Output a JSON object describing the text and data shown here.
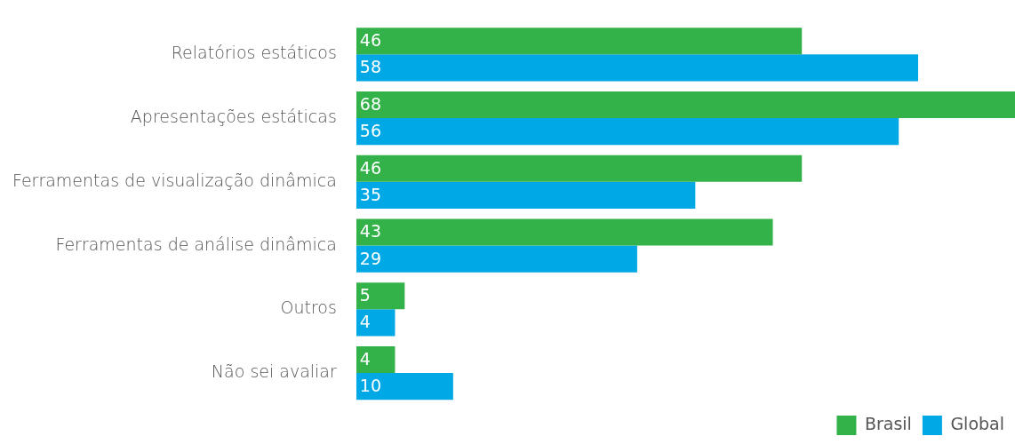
{
  "chart_data": {
    "type": "bar",
    "orientation": "horizontal",
    "categories": [
      "Relatórios estáticos",
      "Apresentações estáticas",
      "Ferramentas de visualização dinâmica",
      "Ferramentas de análise dinâmica",
      "Outros",
      "Não sei avaliar"
    ],
    "series": [
      {
        "name": "Brasil",
        "color": "#33b249",
        "values": [
          46,
          68,
          46,
          43,
          5,
          4
        ]
      },
      {
        "name": "Global",
        "color": "#00a9e6",
        "values": [
          58,
          56,
          35,
          29,
          4,
          10
        ]
      }
    ],
    "data_labels": true,
    "legend": "bottom right"
  }
}
